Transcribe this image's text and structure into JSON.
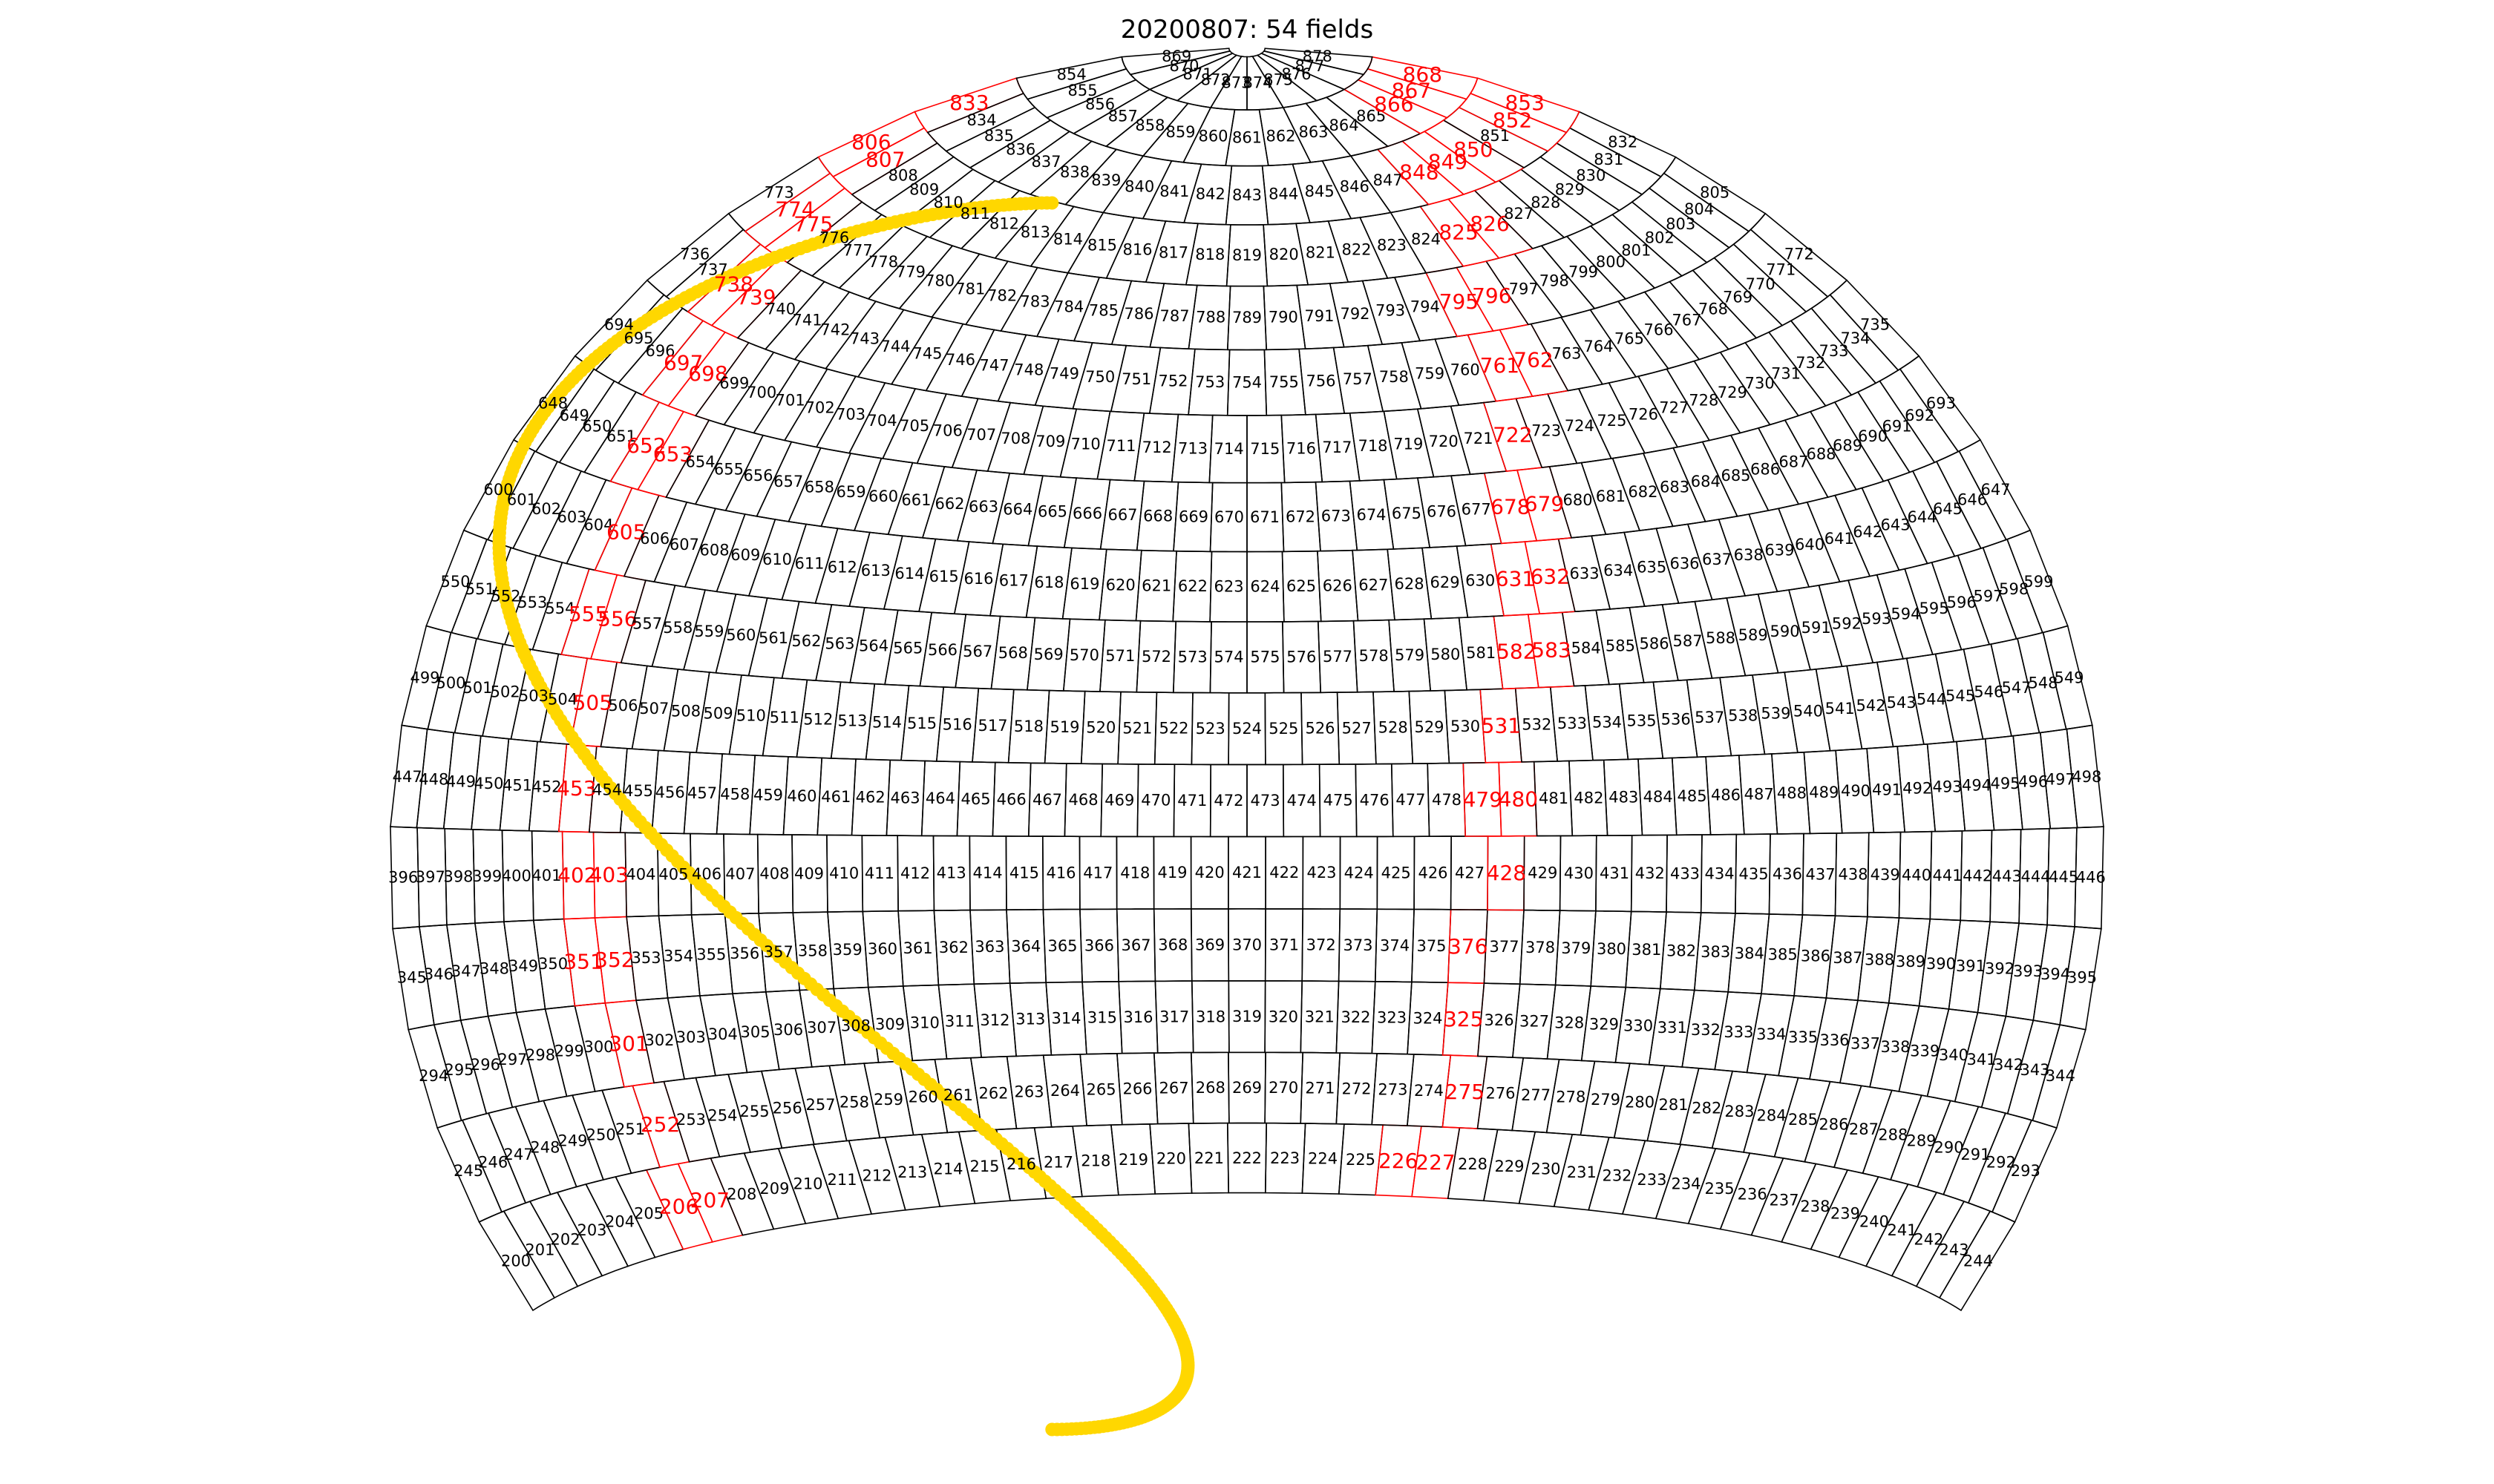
{
  "title": "20200807: 54 fields",
  "colors": {
    "field_outline": "#000000",
    "selected_field": "#ff0000",
    "track": "#ffd700"
  },
  "projection": "hammer-aitoff (upper hemisphere visible)",
  "highlighted_fields": [
    206,
    207,
    226,
    227,
    252,
    275,
    301,
    325,
    351,
    352,
    376,
    402,
    403,
    428,
    453,
    479,
    480,
    505,
    531,
    555,
    556,
    582,
    583,
    605,
    631,
    632,
    652,
    653,
    678,
    679,
    697,
    698,
    722,
    738,
    739,
    761,
    762,
    774,
    775,
    795,
    796,
    806,
    807,
    825,
    826,
    833,
    848,
    849,
    850,
    852,
    853,
    866,
    867,
    868
  ],
  "rows": [
    {
      "start": 200,
      "count": 45
    },
    {
      "start": 245,
      "count": 49
    },
    {
      "start": 294,
      "count": 51
    },
    {
      "start": 345,
      "count": 51
    },
    {
      "start": 396,
      "count": 51
    },
    {
      "start": 447,
      "count": 52
    },
    {
      "start": 499,
      "count": 51
    },
    {
      "start": 550,
      "count": 50
    },
    {
      "start": 600,
      "count": 48
    },
    {
      "start": 648,
      "count": 46
    },
    {
      "start": 694,
      "count": 42
    },
    {
      "start": 736,
      "count": 37
    },
    {
      "start": 773,
      "count": 33
    },
    {
      "start": 806,
      "count": 27
    },
    {
      "start": 833,
      "count": 21
    },
    {
      "start": 854,
      "count": 15
    },
    {
      "start": 869,
      "count": 10
    }
  ]
}
